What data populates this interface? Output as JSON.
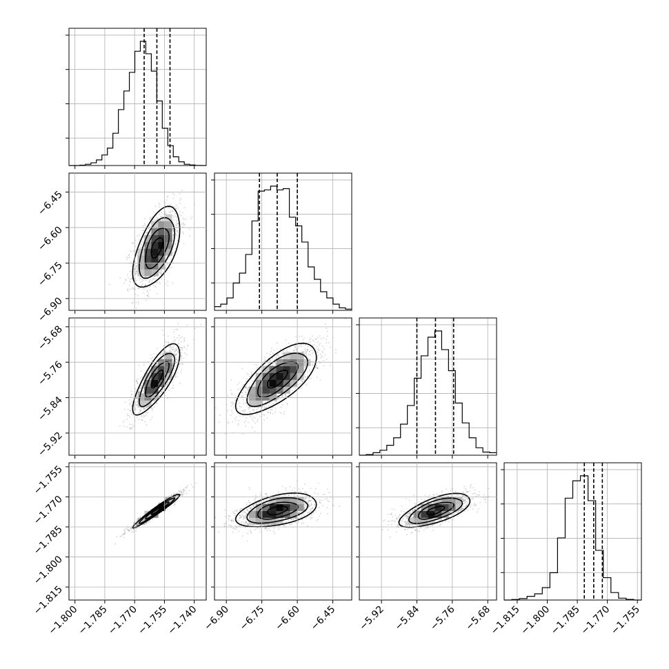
{
  "chart_data": {
    "type": "corner",
    "title": "",
    "grid": true,
    "parameters": [
      {
        "range": [
          -1.803,
          -1.734
        ],
        "ticks": [
          -1.8,
          -1.785,
          -1.77,
          -1.755,
          -1.74
        ],
        "tick_labels": [
          "−1.800",
          "−1.785",
          "−1.770",
          "−1.755",
          "−1.740"
        ],
        "mean": -1.7588,
        "std": 0.0059,
        "quantiles": [
          -1.7652,
          -1.7588,
          -1.7522
        ],
        "histogram": [
          0,
          0,
          0.003,
          0.01,
          0.022,
          0.045,
          0.085,
          0.14,
          0.26,
          0.45,
          0.6,
          0.75,
          0.92,
          1.0,
          0.9,
          0.76,
          0.52,
          0.3,
          0.16,
          0.07,
          0.03,
          0.01,
          0.004,
          0.001,
          0
        ]
      },
      {
        "range": [
          -6.95,
          -6.37
        ],
        "ticks": [
          -6.9,
          -6.75,
          -6.6,
          -6.45
        ],
        "tick_labels": [
          "−6.90",
          "−6.75",
          "−6.60",
          "−6.45"
        ],
        "mean": -6.685,
        "std": 0.085,
        "quantiles": [
          -6.76,
          -6.685,
          -6.6
        ],
        "histogram": [
          0.03,
          0.05,
          0.1,
          0.22,
          0.3,
          0.45,
          0.72,
          0.96,
          0.97,
          1.0,
          0.97,
          0.98,
          0.75,
          0.68,
          0.55,
          0.35,
          0.25,
          0.15,
          0.1,
          0.05,
          0.02,
          0.01
        ]
      },
      {
        "range": [
          -5.97,
          -5.66
        ],
        "ticks": [
          -5.92,
          -5.84,
          -5.76,
          -5.68
        ],
        "tick_labels": [
          "−5.92",
          "−5.84",
          "−5.76",
          "−5.68"
        ],
        "mean": -5.798,
        "std": 0.04,
        "quantiles": [
          -5.84,
          -5.798,
          -5.757
        ],
        "histogram": [
          0,
          0.005,
          0.02,
          0.04,
          0.08,
          0.14,
          0.25,
          0.4,
          0.62,
          0.8,
          0.95,
          1.0,
          0.85,
          0.68,
          0.42,
          0.26,
          0.14,
          0.06,
          0.025,
          0.02
        ]
      },
      {
        "range": [
          -1.8215,
          -1.753
        ],
        "ticks": [
          -1.815,
          -1.8,
          -1.785,
          -1.77,
          -1.755
        ],
        "tick_labels": [
          "−1.815",
          "−1.800",
          "−1.785",
          "−1.770",
          "−1.755"
        ],
        "mean": -1.7768,
        "std": 0.0042,
        "quantiles": [
          -1.7815,
          -1.7768,
          -1.7725
        ],
        "histogram": [
          0,
          0.004,
          0.012,
          0.03,
          0.05,
          0.1,
          0.22,
          0.5,
          0.82,
          0.96,
          1.0,
          0.8,
          0.4,
          0.18,
          0.06,
          0.015,
          0.005,
          0
        ]
      }
    ],
    "correlations": [
      [
        1,
        0.55,
        0.78,
        0.97
      ],
      [
        0.55,
        1,
        0.7,
        0.45
      ],
      [
        0.78,
        0.7,
        1,
        0.65
      ],
      [
        0.97,
        0.45,
        0.65,
        1
      ]
    ]
  }
}
